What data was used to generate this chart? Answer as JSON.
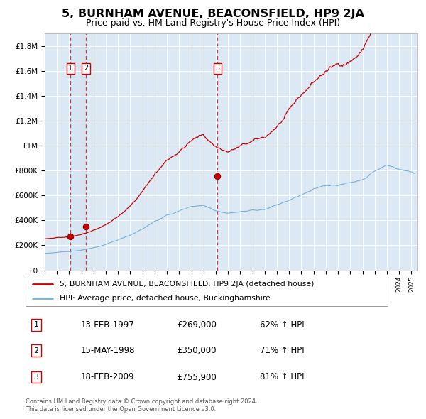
{
  "title": "5, BURNHAM AVENUE, BEACONSFIELD, HP9 2JA",
  "subtitle": "Price paid vs. HM Land Registry's House Price Index (HPI)",
  "title_fontsize": 11.5,
  "subtitle_fontsize": 9,
  "background_color": "#dce9f5",
  "plot_bg_color": "#dce9f5",
  "red_line_color": "#cc0000",
  "blue_line_color": "#7ab0d4",
  "dashed_line_color": "#cc0000",
  "purchases": [
    {
      "label": "1",
      "date_num": 1997.12,
      "price": 269000,
      "hpi_pct": "62%",
      "date_str": "13-FEB-1997"
    },
    {
      "label": "2",
      "date_num": 1998.37,
      "price": 350000,
      "hpi_pct": "71%",
      "date_str": "15-MAY-1998"
    },
    {
      "label": "3",
      "date_num": 2009.12,
      "price": 755900,
      "hpi_pct": "81%",
      "date_str": "18-FEB-2009"
    }
  ],
  "ylim": [
    0,
    1900000
  ],
  "xlim": [
    1995.0,
    2025.5
  ],
  "yticks": [
    0,
    200000,
    400000,
    600000,
    800000,
    1000000,
    1200000,
    1400000,
    1600000,
    1800000
  ],
  "ytick_labels": [
    "£0",
    "£200K",
    "£400K",
    "£600K",
    "£800K",
    "£1M",
    "£1.2M",
    "£1.4M",
    "£1.6M",
    "£1.8M"
  ],
  "legend_red_label": "5, BURNHAM AVENUE, BEACONSFIELD, HP9 2JA (detached house)",
  "legend_blue_label": "HPI: Average price, detached house, Buckinghamshire",
  "footer_line1": "Contains HM Land Registry data © Crown copyright and database right 2024.",
  "footer_line2": "This data is licensed under the Open Government Licence v3.0."
}
